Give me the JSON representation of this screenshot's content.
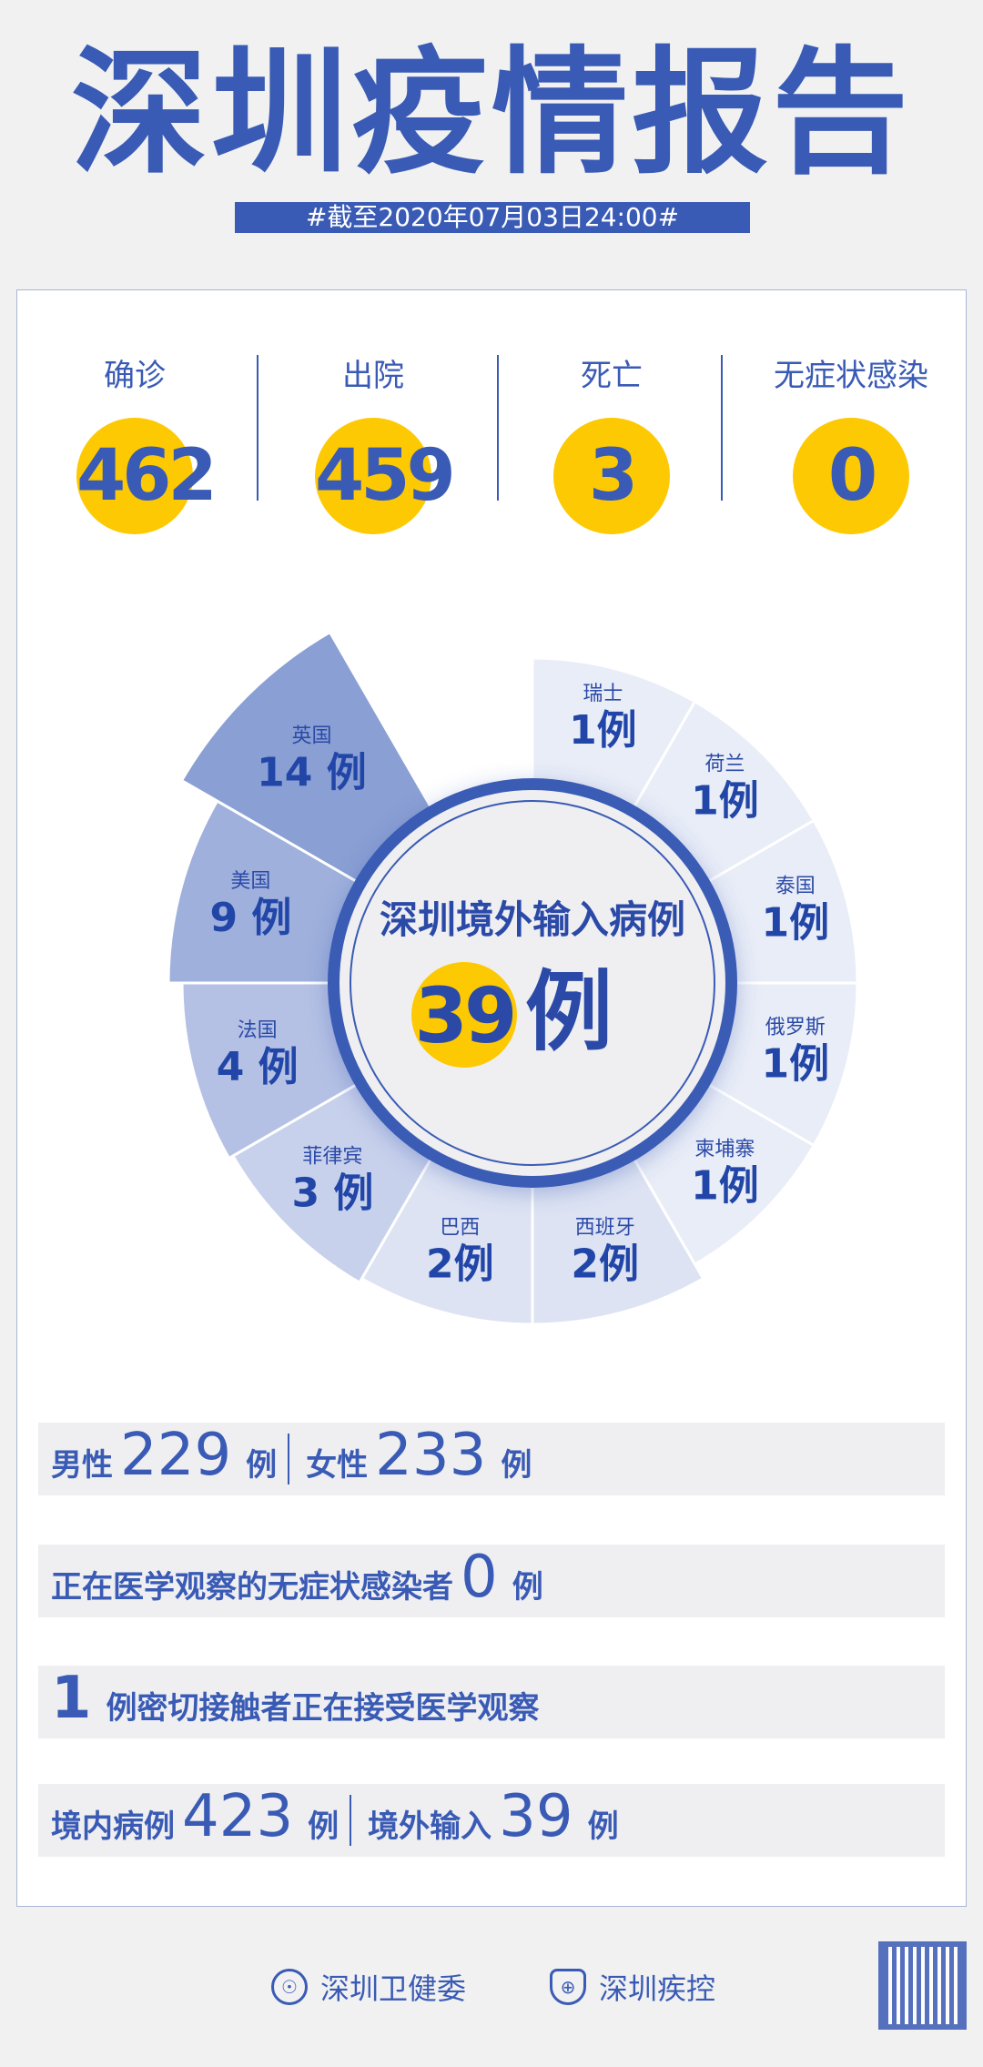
{
  "title": "深圳疫情报告",
  "date": "#截至2020年07月03日24:00#",
  "stats": [
    {
      "label": "确诊",
      "value": "462"
    },
    {
      "label": "出院",
      "value": "459"
    },
    {
      "label": "死亡",
      "value": "3"
    },
    {
      "label": "无症状感染",
      "value": "0"
    }
  ],
  "imported": {
    "title": "深圳境外输入病例",
    "total": "39",
    "unit": "例",
    "countries": [
      {
        "name": "瑞士",
        "value": 1,
        "label": "1例"
      },
      {
        "name": "荷兰",
        "value": 1,
        "label": "1例"
      },
      {
        "name": "泰国",
        "value": 1,
        "label": "1例"
      },
      {
        "name": "俄罗斯",
        "value": 1,
        "label": "1例"
      },
      {
        "name": "柬埔寨",
        "value": 1,
        "label": "1例"
      },
      {
        "name": "西班牙",
        "value": 2,
        "label": "2例"
      },
      {
        "name": "巴西",
        "value": 2,
        "label": "2例"
      },
      {
        "name": "菲律宾",
        "value": 3,
        "label": "3 例"
      },
      {
        "name": "法国",
        "value": 4,
        "label": "4 例"
      },
      {
        "name": "美国",
        "value": 9,
        "label": "9 例"
      },
      {
        "name": "英国",
        "value": 14,
        "label": "14 例"
      }
    ]
  },
  "rows": {
    "male_label": "男性",
    "male": "229",
    "female_label": "女性",
    "female": "233",
    "unit": "例",
    "asym_label": "正在医学观察的无症状感染者",
    "asym": "0",
    "contacts": "1",
    "contacts_label": "例密切接触者正在接受医学观察",
    "local_label": "境内病例",
    "local": "423",
    "import_label": "境外输入",
    "import": "39"
  },
  "footer": {
    "org1": "深圳卫健委",
    "org2": "深圳疾控"
  },
  "colors": {
    "primary": "#3a5bb5",
    "accent": "#fdc903"
  }
}
